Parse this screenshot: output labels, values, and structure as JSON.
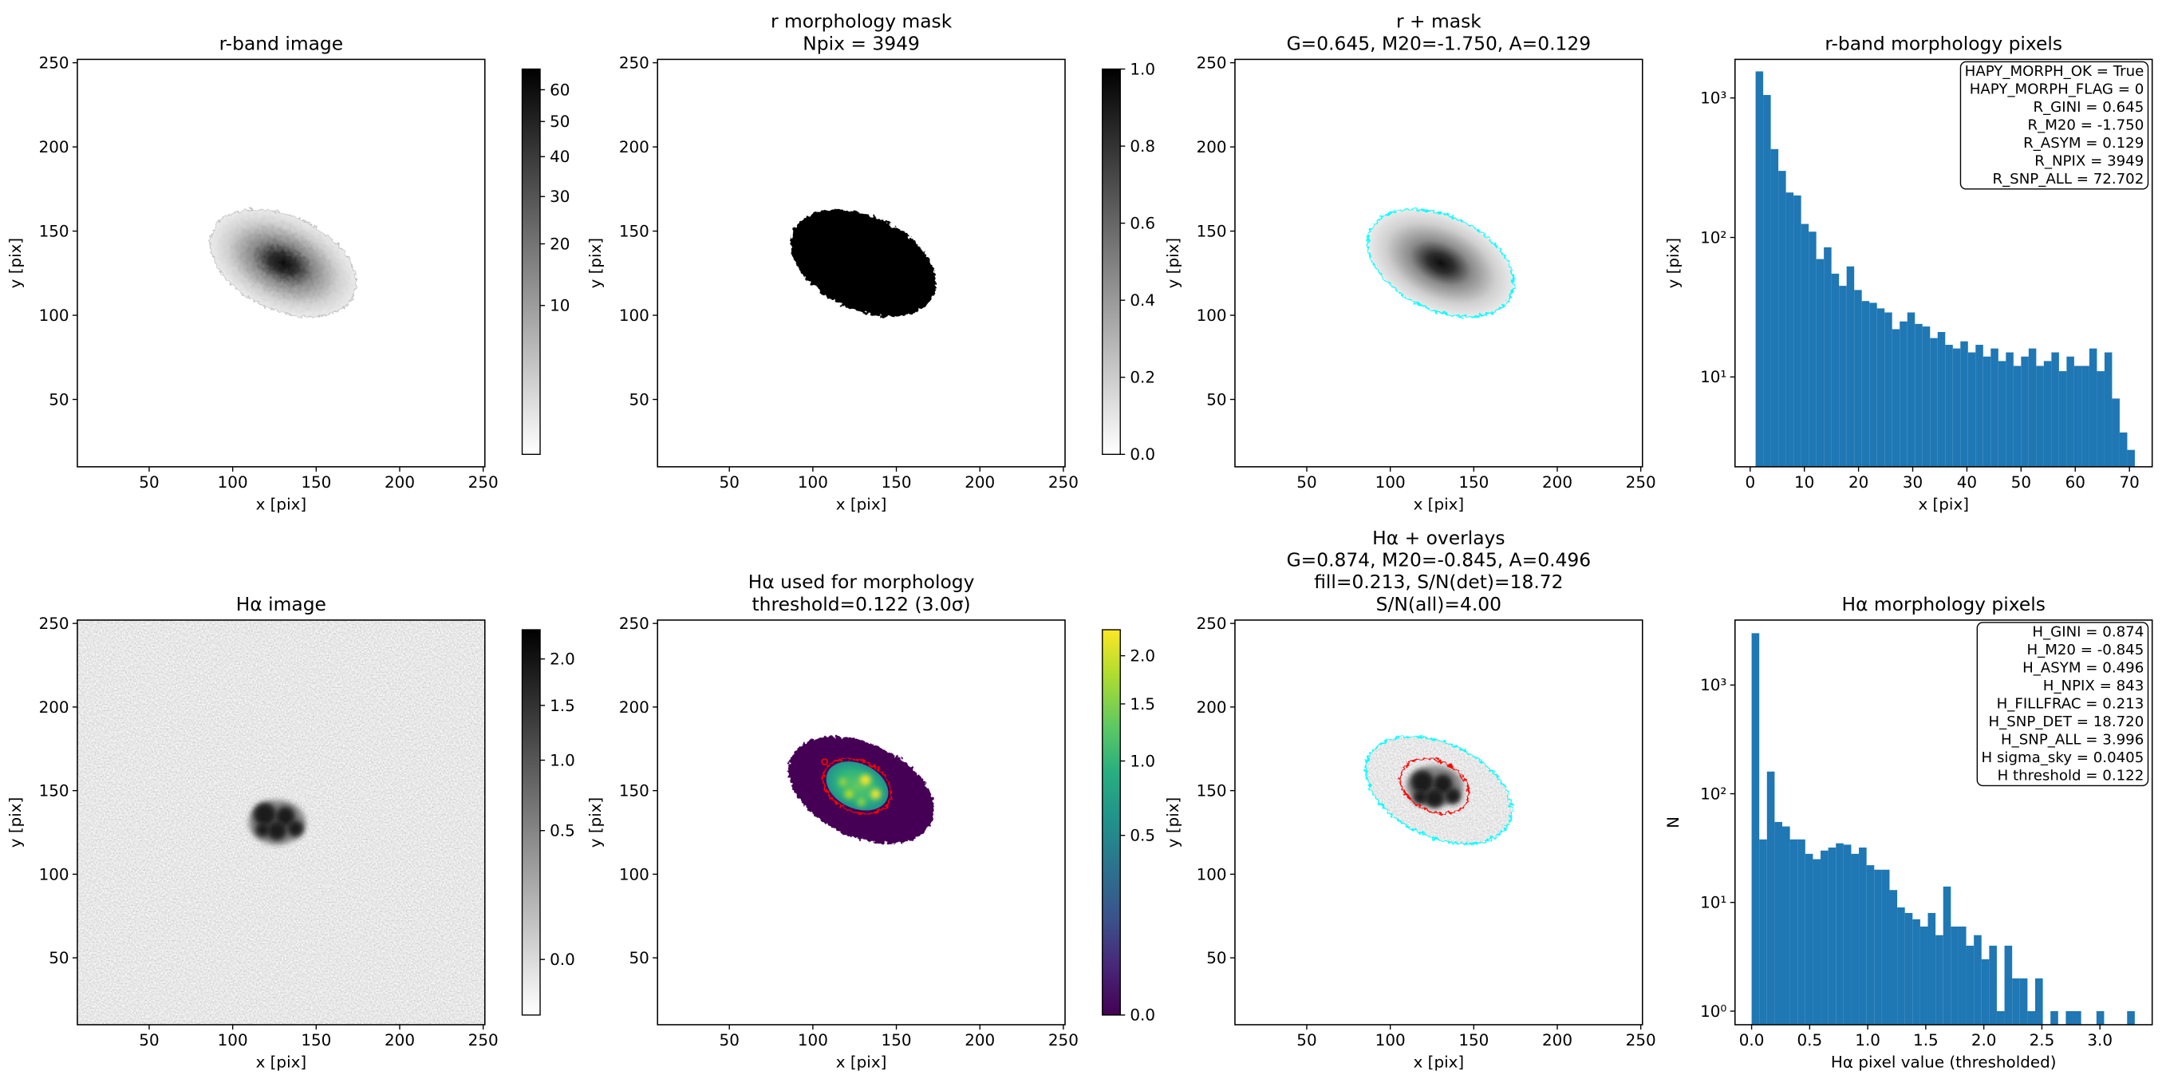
{
  "chart_data": [
    {
      "type": "image",
      "title": [
        "r-band image"
      ],
      "xlabel": "x [pix]",
      "ylabel": "y [pix]",
      "xlim": [
        7,
        251
      ],
      "ylim": [
        10,
        252
      ],
      "xticks": [
        50,
        100,
        150,
        200,
        250
      ],
      "yticks": [
        50,
        100,
        150,
        200,
        250
      ],
      "colorbar": {
        "colormap": "gray_r",
        "scale": "sqrt",
        "clim": [
          0,
          67
        ],
        "ticks": [
          10,
          20,
          30,
          40,
          50,
          60
        ]
      }
    },
    {
      "type": "image",
      "title": [
        "r morphology mask",
        "Npix = 3949"
      ],
      "xlabel": "x [pix]",
      "ylabel": "y [pix]",
      "xlim": [
        7,
        251
      ],
      "ylim": [
        10,
        252
      ],
      "xticks": [
        50,
        100,
        150,
        200,
        250
      ],
      "yticks": [
        50,
        100,
        150,
        200,
        250
      ],
      "colorbar": {
        "colormap": "gray_r",
        "scale": "linear",
        "clim": [
          0,
          1
        ],
        "ticks": [
          {
            "value": 0,
            "label": "0.0"
          },
          {
            "value": 0.2,
            "label": "0.2"
          },
          {
            "value": 0.4,
            "label": "0.4"
          },
          {
            "value": 0.6,
            "label": "0.6"
          },
          {
            "value": 0.8,
            "label": "0.8"
          },
          {
            "value": 1,
            "label": "1.0"
          }
        ]
      }
    },
    {
      "type": "image",
      "title": [
        "r + mask",
        "G=0.645, M20=-1.750, A=0.129"
      ],
      "xlabel": "x [pix]",
      "ylabel": "y [pix]",
      "xlim": [
        7,
        251
      ],
      "ylim": [
        10,
        252
      ],
      "xticks": [
        50,
        100,
        150,
        200,
        250
      ],
      "yticks": [
        50,
        100,
        150,
        200,
        250
      ]
    },
    {
      "type": "histogram",
      "title": [
        "r-band morphology pixels"
      ],
      "xlabel": "x [pix]",
      "ylabel": "y [pix]",
      "color": "#1f77b4",
      "bins": [
        1.0,
        2.4,
        3.8,
        5.2,
        6.6,
        8.0,
        9.4,
        10.8,
        12.2,
        13.6,
        15.0,
        16.4,
        17.8,
        19.2,
        20.6,
        22.0,
        23.4,
        24.8,
        26.2,
        27.6,
        29.0,
        30.4,
        31.8,
        33.2,
        34.6,
        36.0,
        37.4,
        38.8,
        40.2,
        41.6,
        43.0,
        44.4,
        45.8,
        47.2,
        48.6,
        50.0,
        51.4,
        52.8,
        54.2,
        55.6,
        57.0,
        58.4,
        59.8,
        61.2,
        62.6,
        64.0,
        65.4,
        66.8,
        68.2,
        69.6,
        71.0
      ],
      "counts": [
        1550,
        1050,
        430,
        300,
        210,
        200,
        125,
        110,
        70,
        85,
        55,
        45,
        62,
        42,
        35,
        34,
        31,
        29,
        22,
        25,
        29,
        24,
        23,
        19,
        21,
        17,
        16,
        18,
        15,
        17,
        14,
        16,
        13,
        15,
        12,
        14,
        16,
        12,
        13,
        15,
        11,
        14,
        12,
        12,
        16,
        11,
        15,
        7,
        4,
        3
      ],
      "xlim": [
        -2.8,
        74.2
      ],
      "xticks": [
        0,
        10,
        20,
        30,
        40,
        50,
        60,
        70
      ],
      "yscale": "log",
      "ylim": [
        2.27,
        1890
      ],
      "yticks": [
        {
          "value": 10,
          "label": "10¹"
        },
        {
          "value": 100,
          "label": "10²"
        },
        {
          "value": 1000,
          "label": "10³"
        }
      ],
      "annotation": [
        "HAPY_MORPH_OK = True",
        "HAPY_MORPH_FLAG = 0",
        "R_GINI = 0.645",
        "R_M20 = -1.750",
        "R_ASYM = 0.129",
        "R_NPIX = 3949",
        "R_SNP_ALL = 72.702"
      ]
    },
    {
      "type": "image",
      "title": [
        "Hα image"
      ],
      "xlabel": "x [pix]",
      "ylabel": "y [pix]",
      "xlim": [
        7,
        251
      ],
      "ylim": [
        10,
        252
      ],
      "xticks": [
        50,
        100,
        150,
        200,
        250
      ],
      "yticks": [
        50,
        100,
        150,
        200,
        250
      ],
      "colorbar": {
        "colormap": "gray_r",
        "scale": "sqrt",
        "clim": [
          -0.05,
          2.35
        ],
        "ticks": [
          {
            "value": 0,
            "label": "0.0"
          },
          {
            "value": 0.5,
            "label": "0.5"
          },
          {
            "value": 1,
            "label": "1.0"
          },
          {
            "value": 1.5,
            "label": "1.5"
          },
          {
            "value": 2,
            "label": "2.0"
          }
        ]
      }
    },
    {
      "type": "image",
      "title": [
        "Hα used for morphology",
        "threshold=0.122 (3.0σ)"
      ],
      "xlabel": "x [pix]",
      "ylabel": "y [pix]",
      "xlim": [
        7,
        251
      ],
      "ylim": [
        10,
        252
      ],
      "xticks": [
        50,
        100,
        150,
        200,
        250
      ],
      "yticks": [
        50,
        100,
        150,
        200,
        250
      ],
      "colorbar": {
        "colormap": "viridis",
        "scale": "sqrt",
        "clim": [
          0,
          2.3
        ],
        "ticks": [
          {
            "value": 0,
            "label": "0.0"
          },
          {
            "value": 0.5,
            "label": "0.5"
          },
          {
            "value": 1,
            "label": "1.0"
          },
          {
            "value": 1.5,
            "label": "1.5"
          },
          {
            "value": 2,
            "label": "2.0"
          }
        ]
      }
    },
    {
      "type": "image",
      "title": [
        "Hα + overlays",
        "G=0.874, M20=-0.845, A=0.496",
        "fill=0.213, S/N(det)=18.72",
        "S/N(all)=4.00"
      ],
      "xlabel": "x [pix]",
      "ylabel": "y [pix]",
      "xlim": [
        7,
        251
      ],
      "ylim": [
        10,
        252
      ],
      "xticks": [
        50,
        100,
        150,
        200,
        250
      ],
      "yticks": [
        50,
        100,
        150,
        200,
        250
      ]
    },
    {
      "type": "histogram",
      "title": [
        "Hα morphology pixels"
      ],
      "xlabel": "Hα pixel value (thresholded)",
      "ylabel": "N",
      "color": "#1f77b4",
      "bins": [
        0,
        0.066,
        0.132,
        0.198,
        0.264,
        0.33,
        0.396,
        0.462,
        0.528,
        0.594,
        0.66,
        0.726,
        0.792,
        0.858,
        0.924,
        0.99,
        1.056,
        1.122,
        1.188,
        1.254,
        1.32,
        1.386,
        1.452,
        1.518,
        1.584,
        1.65,
        1.716,
        1.782,
        1.848,
        1.914,
        1.98,
        2.046,
        2.112,
        2.178,
        2.244,
        2.31,
        2.376,
        2.442,
        2.508,
        2.574,
        2.64,
        2.706,
        2.772,
        2.838,
        2.904,
        2.97,
        3.036,
        3.102,
        3.168,
        3.234,
        3.3
      ],
      "counts": [
        3000,
        38,
        160,
        55,
        50,
        38,
        38,
        28,
        25,
        30,
        32,
        35,
        34,
        28,
        32,
        22,
        20,
        20,
        13,
        9,
        8,
        7,
        6,
        8,
        5,
        14,
        6,
        6,
        4,
        5,
        3,
        4,
        1,
        4,
        2,
        2,
        1,
        2,
        0,
        1,
        0,
        1,
        1,
        0,
        0,
        1,
        0,
        0,
        0,
        1
      ],
      "xlim": [
        -0.143,
        3.45
      ],
      "xticks": [
        {
          "value": 0,
          "label": "0.0"
        },
        {
          "value": 0.5,
          "label": "0.5"
        },
        {
          "value": 1,
          "label": "1.0"
        },
        {
          "value": 1.5,
          "label": "1.5"
        },
        {
          "value": 2,
          "label": "2.0"
        },
        {
          "value": 2.5,
          "label": "2.5"
        },
        {
          "value": 3,
          "label": "3.0"
        }
      ],
      "yscale": "log",
      "ylim": [
        0.75,
        3960
      ],
      "yticks": [
        {
          "value": 1,
          "label": "10⁰"
        },
        {
          "value": 10,
          "label": "10¹"
        },
        {
          "value": 100,
          "label": "10²"
        },
        {
          "value": 1000,
          "label": "10³"
        }
      ],
      "annotation": [
        "H_GINI = 0.874",
        "H_M20 = -0.845",
        "H_ASYM = 0.496",
        "H_NPIX = 843",
        "H_FILLFRAC = 0.213",
        "H_SNP_DET = 18.720",
        "H_SNP_ALL = 3.996",
        "H sigma_sky = 0.0405",
        "H threshold = 0.122"
      ]
    }
  ]
}
